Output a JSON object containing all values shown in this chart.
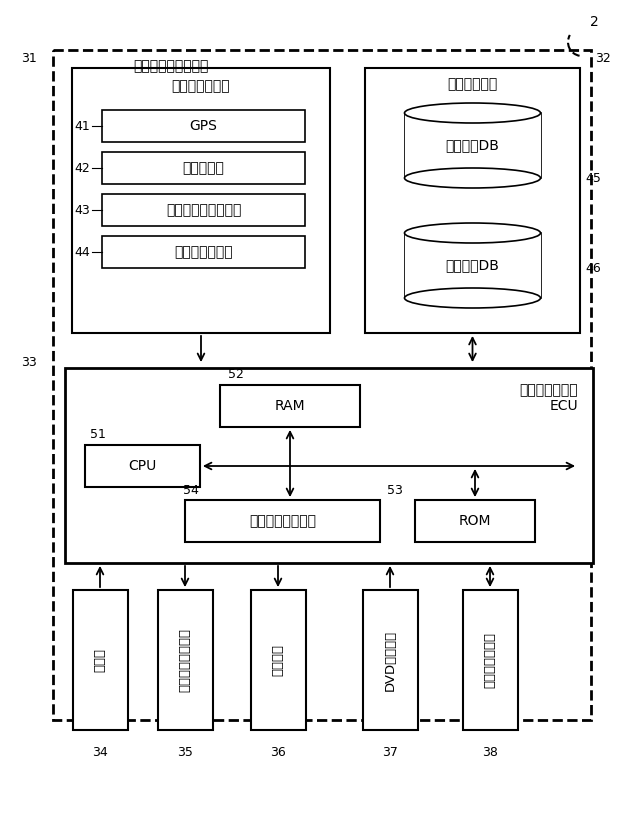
{
  "bg_color": "#ffffff",
  "label_2": "2",
  "label_31": "31",
  "label_32": "32",
  "label_33": "33",
  "label_41": "41",
  "label_42": "42",
  "label_43": "43",
  "label_44": "44",
  "label_45": "45",
  "label_46": "46",
  "label_51": "51",
  "label_52": "52",
  "label_53": "53",
  "label_54": "54",
  "label_34": "34",
  "label_35": "35",
  "label_36": "36",
  "label_37": "37",
  "label_38": "38",
  "navi_device_label": "ナビゲーション装置",
  "current_pos_label": "現在位置検出部",
  "data_record_label": "データ記録部",
  "navi_ecu_line1": "ナビゲーション",
  "navi_ecu_line2": "ECU",
  "gps_label": "GPS",
  "car_speed_label": "車速センサ",
  "steering_label": "ステアリングセンサ",
  "gyro_label": "ジャイロセンサ",
  "map_db_label": "地図情報DB",
  "dist_db_label": "配信情報DB",
  "ram_label": "RAM",
  "cpu_label": "CPU",
  "flash_label": "フラッシュメモリ",
  "rom_label": "ROM",
  "op_label": "操作部",
  "lcd_label": "液晶ディスプレイ",
  "speaker_label": "スピーカ",
  "dvd_label": "DVDドライブ",
  "comm_label": "通信モジュール"
}
